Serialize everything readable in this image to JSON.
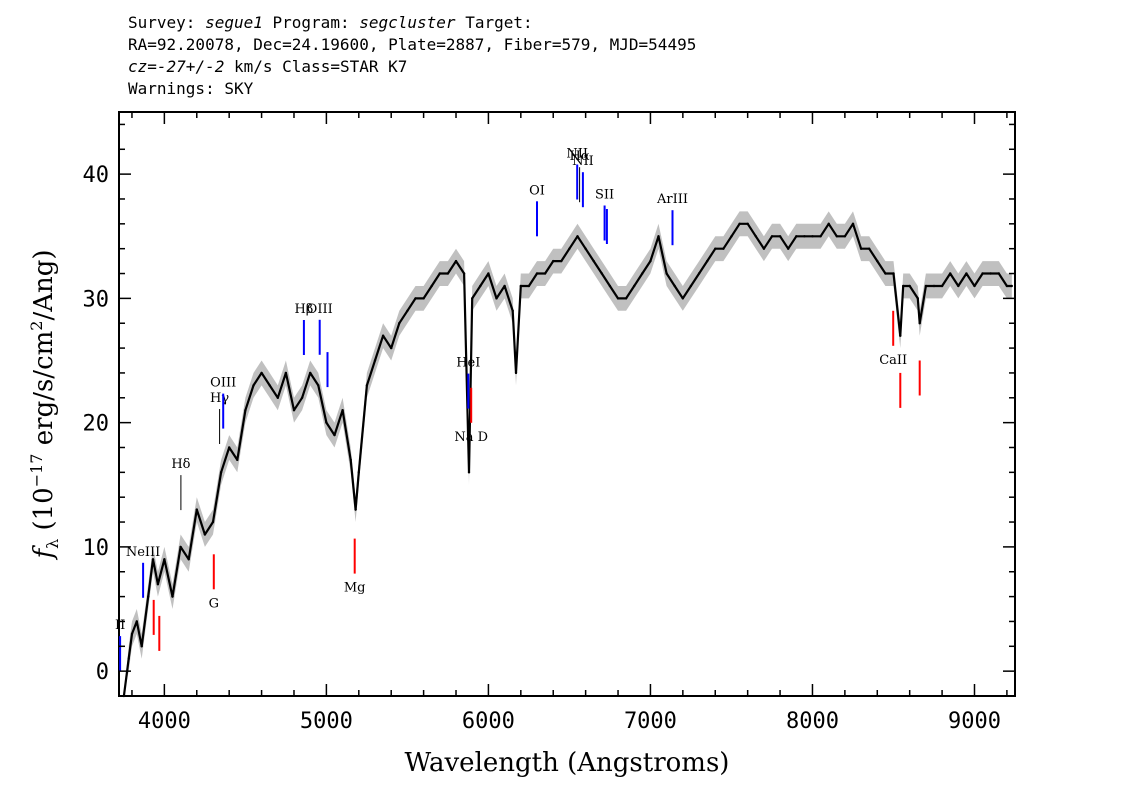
{
  "header": {
    "survey_label": "Survey:",
    "survey_value": "segue1",
    "program_label": "Program:",
    "program_value": "segcluster",
    "target_label": "Target:",
    "line2": "RA=92.20078, Dec=24.19600, Plate=2887, Fiber=579, MJD=54495",
    "cz_label": "cz=",
    "cz_value": "-27+/-2",
    "cz_unit": "km/s",
    "class_text": "Class=STAR K7",
    "warnings": "Warnings: SKY"
  },
  "colors": {
    "spectrum": "#000000",
    "error_band": "#c0c0c0",
    "emission_line": "#0000ff",
    "absorption_line": "#ff0000",
    "balmer_line": "#000000"
  },
  "chart_data": {
    "type": "line",
    "xlabel": "Wavelength (Angstroms)",
    "ylabel": "f_λ (10^-17 erg/s/cm^2/Ang)",
    "xlim": [
      3720,
      9250
    ],
    "ylim": [
      -2,
      45
    ],
    "xticks": [
      4000,
      5000,
      6000,
      7000,
      8000,
      9000
    ],
    "yticks": [
      0,
      10,
      20,
      30,
      40
    ],
    "grid": false,
    "legend": "none",
    "series": [
      {
        "x": [
          3750,
          3780,
          3800,
          3830,
          3860,
          3900,
          3930,
          3960,
          4000,
          4050,
          4100,
          4150,
          4200,
          4250,
          4300,
          4350,
          4400,
          4450,
          4500,
          4550,
          4600,
          4650,
          4700,
          4750,
          4800,
          4850,
          4900,
          4950,
          5000,
          5050,
          5100,
          5150,
          5180,
          5200,
          5250,
          5300,
          5350,
          5400,
          5450,
          5500,
          5550,
          5600,
          5650,
          5700,
          5750,
          5800,
          5850,
          5880,
          5900,
          5950,
          6000,
          6050,
          6100,
          6150,
          6170,
          6200,
          6250,
          6300,
          6350,
          6400,
          6450,
          6500,
          6550,
          6600,
          6650,
          6700,
          6750,
          6800,
          6850,
          6900,
          6950,
          7000,
          7050,
          7100,
          7150,
          7200,
          7250,
          7300,
          7350,
          7400,
          7450,
          7500,
          7550,
          7600,
          7650,
          7700,
          7750,
          7800,
          7850,
          7900,
          7950,
          8000,
          8050,
          8100,
          8150,
          8200,
          8250,
          8300,
          8350,
          8400,
          8450,
          8500,
          8542,
          8560,
          8600,
          8650,
          8662,
          8700,
          8750,
          8800,
          8850,
          8900,
          8950,
          9000,
          9050,
          9100,
          9150,
          9200,
          9230
        ],
        "y": [
          -3,
          1,
          3,
          4,
          2,
          6,
          9,
          7,
          9,
          6,
          10,
          9,
          13,
          11,
          12,
          16,
          18,
          17,
          21,
          23,
          24,
          23,
          22,
          24,
          21,
          22,
          24,
          23,
          20,
          19,
          21,
          17,
          13,
          16,
          23,
          25,
          27,
          26,
          28,
          29,
          30,
          30,
          31,
          32,
          32,
          33,
          32,
          16,
          30,
          31,
          32,
          30,
          31,
          29,
          24,
          31,
          31,
          32,
          32,
          33,
          33,
          34,
          35,
          34,
          33,
          32,
          31,
          30,
          30,
          31,
          32,
          33,
          35,
          32,
          31,
          30,
          31,
          32,
          33,
          34,
          34,
          35,
          36,
          36,
          35,
          34,
          35,
          35,
          34,
          35,
          35,
          35,
          35,
          36,
          35,
          35,
          36,
          34,
          34,
          33,
          32,
          32,
          27,
          31,
          31,
          30,
          28,
          31,
          31,
          31,
          32,
          31,
          32,
          31,
          32,
          32,
          32,
          31,
          31
        ],
        "error": 1.0
      }
    ],
    "line_markers": [
      {
        "label": "II",
        "wavelength": 3727,
        "kind": "emission"
      },
      {
        "label": "NeIII",
        "wavelength": 3869,
        "kind": "emission"
      },
      {
        "label": "",
        "wavelength": 3934,
        "kind": "absorption"
      },
      {
        "label": "",
        "wavelength": 3969,
        "kind": "absorption"
      },
      {
        "label": "Hδ",
        "wavelength": 4102,
        "kind": "balmer"
      },
      {
        "label": "G",
        "wavelength": 4305,
        "kind": "absorption"
      },
      {
        "label": "Hγ",
        "wavelength": 4341,
        "kind": "balmer"
      },
      {
        "label": "OIII",
        "wavelength": 4363,
        "kind": "emission"
      },
      {
        "label": "Hβ",
        "wavelength": 4861,
        "kind": "emission"
      },
      {
        "label": "OIII",
        "wavelength": 4959,
        "kind": "emission"
      },
      {
        "label": "",
        "wavelength": 5007,
        "kind": "emission"
      },
      {
        "label": "Mg",
        "wavelength": 5175,
        "kind": "absorption"
      },
      {
        "label": "HeI",
        "wavelength": 5876,
        "kind": "emission"
      },
      {
        "label": "Na D",
        "wavelength": 5894,
        "kind": "absorption"
      },
      {
        "label": "OI",
        "wavelength": 6300,
        "kind": "emission"
      },
      {
        "label": "NII",
        "wavelength": 6548,
        "kind": "emission"
      },
      {
        "label": "Hα",
        "wavelength": 6563,
        "kind": "balmer"
      },
      {
        "label": "NII",
        "wavelength": 6583,
        "kind": "emission"
      },
      {
        "label": "SII",
        "wavelength": 6717,
        "kind": "emission"
      },
      {
        "label": "",
        "wavelength": 6731,
        "kind": "emission"
      },
      {
        "label": "ArIII",
        "wavelength": 7136,
        "kind": "emission"
      },
      {
        "label": "CaII",
        "wavelength": 8498,
        "kind": "absorption"
      },
      {
        "label": "",
        "wavelength": 8542,
        "kind": "absorption"
      },
      {
        "label": "",
        "wavelength": 8662,
        "kind": "absorption"
      }
    ]
  }
}
